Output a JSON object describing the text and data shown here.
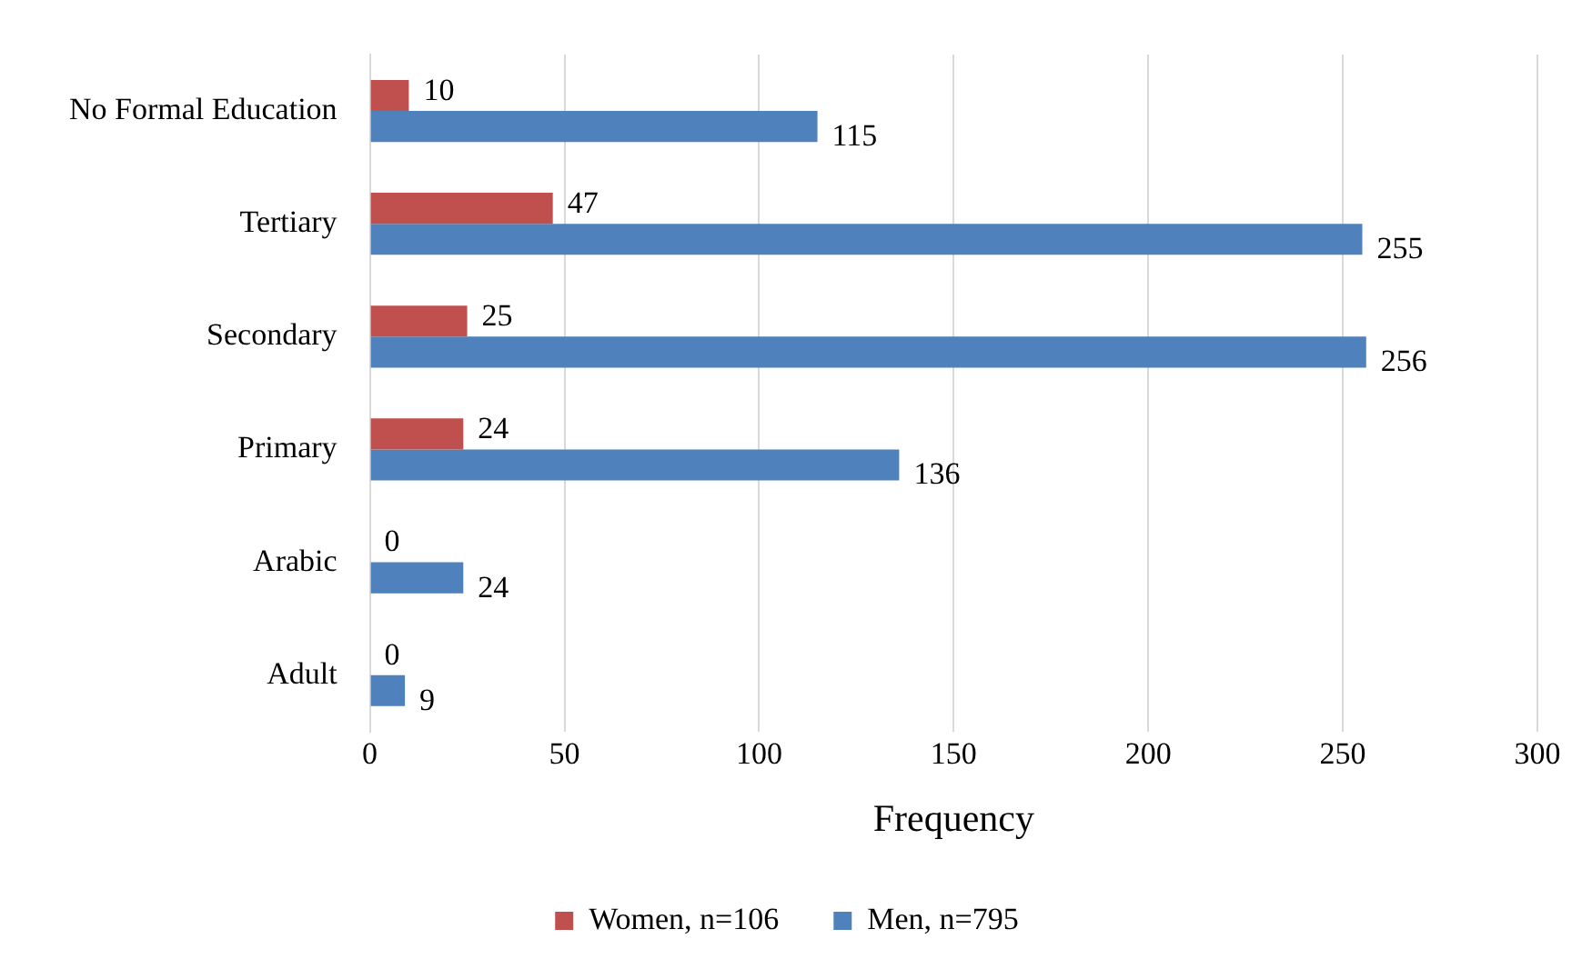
{
  "chart_data": {
    "type": "bar",
    "orientation": "horizontal",
    "xlabel": "Frequency",
    "categories": [
      "No Formal Education",
      "Tertiary",
      "Secondary",
      "Primary",
      "Arabic",
      "Adult"
    ],
    "series": [
      {
        "name": "Women, n=106",
        "color": "#c0504d",
        "values": [
          10,
          47,
          25,
          24,
          0,
          0
        ]
      },
      {
        "name": "Men, n=795",
        "color": "#4f81bd",
        "values": [
          115,
          255,
          256,
          136,
          24,
          9
        ]
      }
    ],
    "xlim": [
      0,
      300
    ],
    "xticks": [
      0,
      50,
      100,
      150,
      200,
      250,
      300
    ],
    "grid": "x",
    "legend": "bottom",
    "data_labels": true
  }
}
